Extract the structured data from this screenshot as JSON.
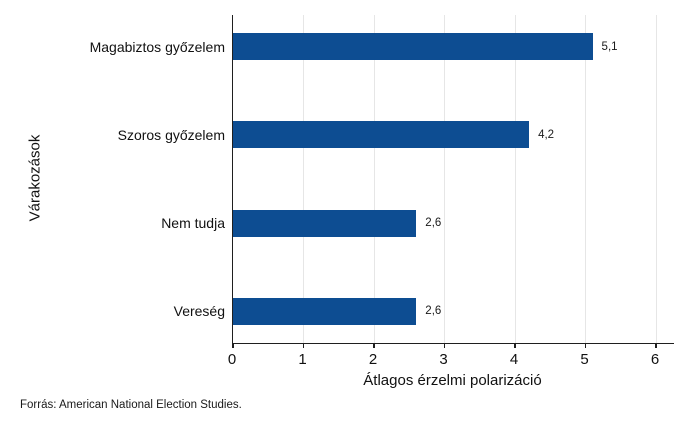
{
  "chart_data": {
    "type": "bar",
    "orientation": "horizontal",
    "categories": [
      "Magabiztos győzelem",
      "Szoros győzelem",
      "Nem tudja",
      "Vereség"
    ],
    "values": [
      5.1,
      4.2,
      2.6,
      2.6
    ],
    "value_labels": [
      "5,1",
      "4,2",
      "2,6",
      "2,6"
    ],
    "title": "",
    "xlabel": "Átlagos érzelmi polarizáció",
    "ylabel": "Várakozások",
    "xlim": [
      0,
      6
    ],
    "xticks": [
      0,
      1,
      2,
      3,
      4,
      5,
      6
    ],
    "grid": "vertical-light",
    "legend": "none",
    "bar_color": "#0d4d92"
  },
  "source_note": "Forrás: American National Election Studies.",
  "badge": {
    "icon": "line-chart-icon",
    "background_color": "#2b7bd0",
    "foreground_color": "#ffffff"
  },
  "colors": {
    "background": "#ffffff",
    "axis": "#1f1f1f",
    "gridline": "#e6e6e6",
    "text": "#111111"
  }
}
